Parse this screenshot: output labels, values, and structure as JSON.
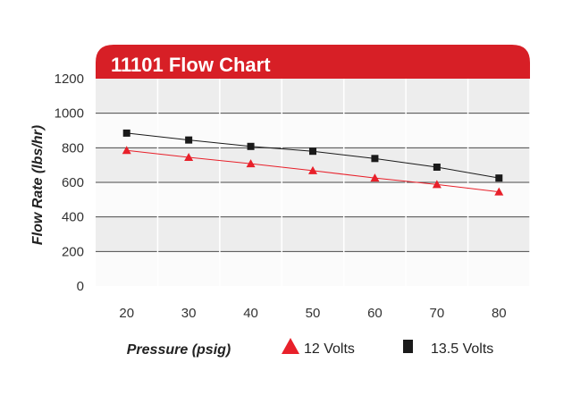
{
  "chart_data": {
    "type": "line",
    "title": "11101 Flow Chart",
    "xlabel": "Pressure (psig)",
    "ylabel": "Flow Rate (lbs/hr)",
    "x": [
      20,
      30,
      40,
      50,
      60,
      70,
      80
    ],
    "xticks": [
      "20",
      "30",
      "40",
      "50",
      "60",
      "70",
      "80"
    ],
    "yticks": [
      "0",
      "200",
      "400",
      "600",
      "800",
      "1000",
      "1200"
    ],
    "xlim": [
      15,
      85
    ],
    "ylim": [
      0,
      1200
    ],
    "grid": true,
    "legend": "bottom",
    "series": [
      {
        "name": "12 Volts",
        "values": [
          785,
          745,
          708,
          668,
          625,
          588,
          545
        ],
        "marker": "triangle",
        "color": "#e8202a"
      },
      {
        "name": "13.5 Volts",
        "values": [
          885,
          845,
          808,
          780,
          738,
          688,
          625
        ],
        "marker": "square",
        "color": "#1a1a1a"
      }
    ]
  },
  "colors": {
    "title_banner": "#d71f26",
    "band_light": "#ededed",
    "band_white": "#fbfbfb",
    "gridline": "#4a4a4a",
    "line_12v": "#e8202a",
    "line_135v": "#1a1a1a"
  }
}
